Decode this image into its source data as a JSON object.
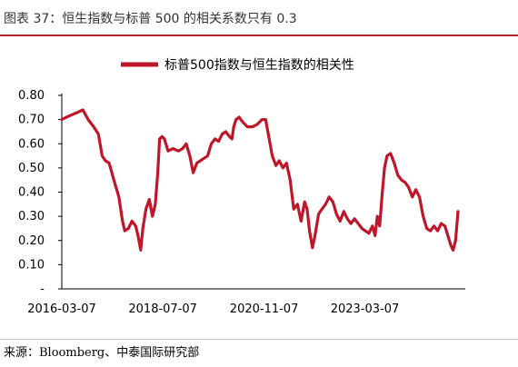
{
  "figure": {
    "title": "图表 37：恒生指数与标普 500 的相关系数只有 0.3",
    "source": "来源：Bloomberg、中泰国际研究部"
  },
  "colors": {
    "series": "#c0162a",
    "accent_rule": "#b8252f"
  },
  "chart_data": {
    "type": "line",
    "title": "",
    "xlabel": "",
    "ylabel": "",
    "legend_position": "top-center",
    "grid": false,
    "ylim": [
      0,
      0.8
    ],
    "y_ticks": [
      {
        "value": 0.8,
        "label": "0.80"
      },
      {
        "value": 0.7,
        "label": "0.70"
      },
      {
        "value": 0.6,
        "label": "0.60"
      },
      {
        "value": 0.5,
        "label": "0.50"
      },
      {
        "value": 0.4,
        "label": "0.40"
      },
      {
        "value": 0.3,
        "label": "0.30"
      },
      {
        "value": 0.2,
        "label": "0.20"
      },
      {
        "value": 0.1,
        "label": "0.10"
      },
      {
        "value": 0,
        "label": "-"
      }
    ],
    "xlim": [
      "2016-03-07",
      "2025-07-01"
    ],
    "x_ticks": [
      "2016-03-07",
      "2018-07-07",
      "2020-11-07",
      "2023-03-07"
    ],
    "series": [
      {
        "name": "标普500指数与恒生指数的相关性",
        "points": [
          [
            "2016-03-07",
            0.7
          ],
          [
            "2016-04-15",
            0.71
          ],
          [
            "2016-06-01",
            0.72
          ],
          [
            "2016-07-20",
            0.73
          ],
          [
            "2016-09-01",
            0.74
          ],
          [
            "2016-10-15",
            0.7
          ],
          [
            "2016-12-01",
            0.67
          ],
          [
            "2017-01-10",
            0.64
          ],
          [
            "2017-02-10",
            0.55
          ],
          [
            "2017-03-10",
            0.53
          ],
          [
            "2017-04-10",
            0.52
          ],
          [
            "2017-05-20",
            0.45
          ],
          [
            "2017-07-01",
            0.38
          ],
          [
            "2017-08-01",
            0.28
          ],
          [
            "2017-08-20",
            0.24
          ],
          [
            "2017-09-20",
            0.25
          ],
          [
            "2017-10-20",
            0.28
          ],
          [
            "2017-11-20",
            0.26
          ],
          [
            "2017-12-10",
            0.22
          ],
          [
            "2018-01-01",
            0.16
          ],
          [
            "2018-01-20",
            0.25
          ],
          [
            "2018-02-15",
            0.33
          ],
          [
            "2018-03-15",
            0.37
          ],
          [
            "2018-04-10",
            0.3
          ],
          [
            "2018-05-05",
            0.35
          ],
          [
            "2018-05-25",
            0.48
          ],
          [
            "2018-06-10",
            0.62
          ],
          [
            "2018-07-01",
            0.63
          ],
          [
            "2018-07-20",
            0.62
          ],
          [
            "2018-08-20",
            0.57
          ],
          [
            "2018-10-01",
            0.58
          ],
          [
            "2018-11-15",
            0.57
          ],
          [
            "2018-12-20",
            0.58
          ],
          [
            "2019-01-20",
            0.6
          ],
          [
            "2019-02-20",
            0.55
          ],
          [
            "2019-03-20",
            0.48
          ],
          [
            "2019-04-20",
            0.52
          ],
          [
            "2019-05-20",
            0.53
          ],
          [
            "2019-06-20",
            0.54
          ],
          [
            "2019-07-20",
            0.55
          ],
          [
            "2019-08-20",
            0.6
          ],
          [
            "2019-09-20",
            0.62
          ],
          [
            "2019-10-20",
            0.61
          ],
          [
            "2019-11-20",
            0.64
          ],
          [
            "2019-12-20",
            0.65
          ],
          [
            "2020-01-20",
            0.63
          ],
          [
            "2020-02-10",
            0.62
          ],
          [
            "2020-02-25",
            0.67
          ],
          [
            "2020-03-15",
            0.7
          ],
          [
            "2020-04-10",
            0.71
          ],
          [
            "2020-05-10",
            0.69
          ],
          [
            "2020-06-20",
            0.67
          ],
          [
            "2020-08-01",
            0.67
          ],
          [
            "2020-09-10",
            0.68
          ],
          [
            "2020-10-20",
            0.7
          ],
          [
            "2020-11-20",
            0.7
          ],
          [
            "2020-12-20",
            0.62
          ],
          [
            "2021-01-15",
            0.55
          ],
          [
            "2021-02-15",
            0.51
          ],
          [
            "2021-03-15",
            0.53
          ],
          [
            "2021-04-15",
            0.5
          ],
          [
            "2021-05-15",
            0.52
          ],
          [
            "2021-06-15",
            0.45
          ],
          [
            "2021-07-15",
            0.33
          ],
          [
            "2021-08-15",
            0.35
          ],
          [
            "2021-09-15",
            0.28
          ],
          [
            "2021-10-15",
            0.36
          ],
          [
            "2021-11-05",
            0.33
          ],
          [
            "2021-11-25",
            0.24
          ],
          [
            "2021-12-20",
            0.17
          ],
          [
            "2022-01-10",
            0.22
          ],
          [
            "2022-02-10",
            0.31
          ],
          [
            "2022-03-10",
            0.33
          ],
          [
            "2022-04-10",
            0.35
          ],
          [
            "2022-05-10",
            0.38
          ],
          [
            "2022-06-10",
            0.36
          ],
          [
            "2022-07-10",
            0.31
          ],
          [
            "2022-08-10",
            0.28
          ],
          [
            "2022-09-10",
            0.32
          ],
          [
            "2022-10-10",
            0.29
          ],
          [
            "2022-11-10",
            0.27
          ],
          [
            "2022-12-10",
            0.29
          ],
          [
            "2023-01-10",
            0.27
          ],
          [
            "2023-02-10",
            0.25
          ],
          [
            "2023-03-10",
            0.24
          ],
          [
            "2023-04-10",
            0.23
          ],
          [
            "2023-05-10",
            0.26
          ],
          [
            "2023-06-01",
            0.22
          ],
          [
            "2023-06-20",
            0.3
          ],
          [
            "2023-07-10",
            0.26
          ],
          [
            "2023-08-01",
            0.4
          ],
          [
            "2023-08-20",
            0.5
          ],
          [
            "2023-09-10",
            0.55
          ],
          [
            "2023-10-10",
            0.56
          ],
          [
            "2023-11-10",
            0.52
          ],
          [
            "2023-12-10",
            0.47
          ],
          [
            "2024-01-10",
            0.45
          ],
          [
            "2024-02-10",
            0.44
          ],
          [
            "2024-03-10",
            0.42
          ],
          [
            "2024-04-10",
            0.38
          ],
          [
            "2024-05-10",
            0.41
          ],
          [
            "2024-06-10",
            0.38
          ],
          [
            "2024-07-10",
            0.3
          ],
          [
            "2024-08-10",
            0.25
          ],
          [
            "2024-09-10",
            0.24
          ],
          [
            "2024-10-10",
            0.26
          ],
          [
            "2024-11-10",
            0.24
          ],
          [
            "2024-12-10",
            0.27
          ],
          [
            "2025-01-10",
            0.26
          ],
          [
            "2025-02-10",
            0.21
          ],
          [
            "2025-03-01",
            0.18
          ],
          [
            "2025-03-20",
            0.16
          ],
          [
            "2025-04-10",
            0.2
          ],
          [
            "2025-05-01",
            0.32
          ]
        ]
      }
    ]
  }
}
